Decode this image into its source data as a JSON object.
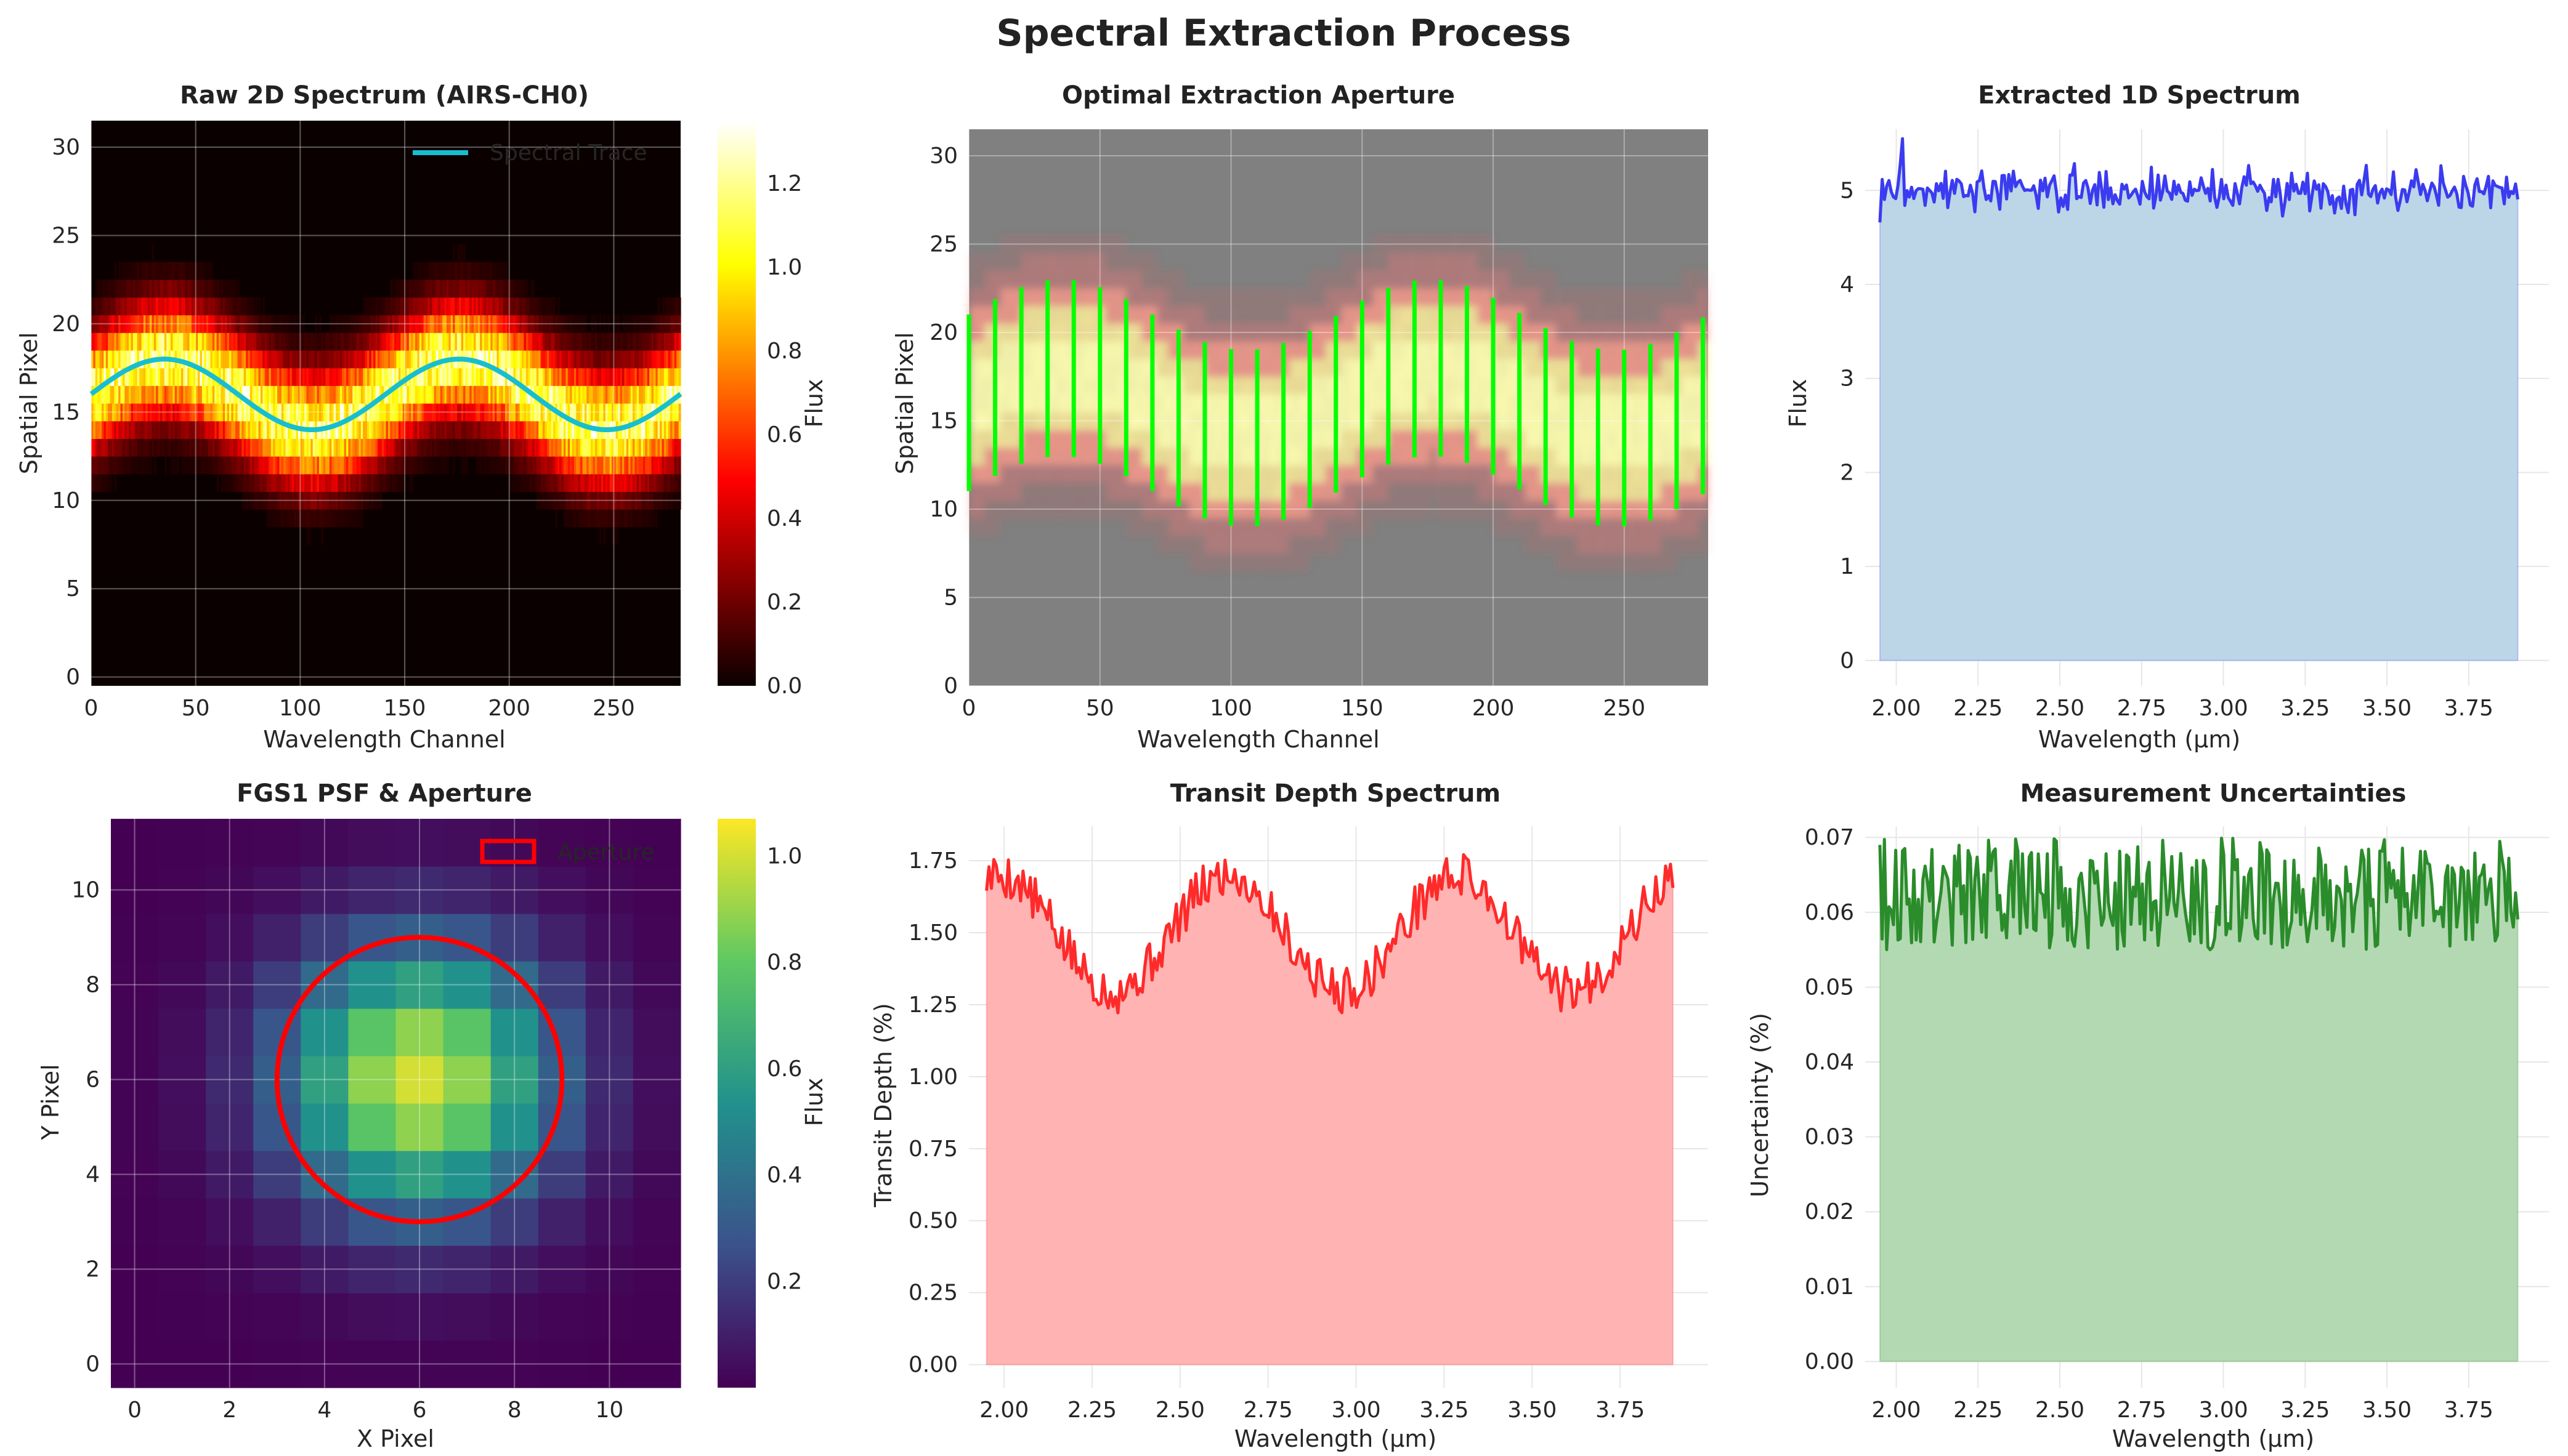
{
  "figure": {
    "title": "Spectral Extraction Process"
  },
  "colors": {
    "trace": "#17becf",
    "aperture_rect": "#00ff00",
    "extracted": "#3b3bf0",
    "extracted_fill": "#bcd6e8",
    "transit": "#ff2a2a",
    "transit_fill": "#ffb3b3",
    "uncert": "#2a8c2a",
    "uncert_fill": "#b3d9b3",
    "circle": "#ff0000",
    "masked_gray": "#808080"
  },
  "chart_data": [
    {
      "id": "raw2d",
      "type": "heatmap",
      "title": "Raw 2D Spectrum (AIRS-CH0)",
      "xlabel": "Wavelength Channel",
      "ylabel": "Spatial Pixel",
      "xlim": [
        0,
        282
      ],
      "ylim": [
        -0.5,
        31.5
      ],
      "xticks": [
        0,
        50,
        100,
        150,
        200,
        250
      ],
      "yticks": [
        0,
        5,
        10,
        15,
        20,
        25,
        30
      ],
      "colormap": "hot",
      "colorbar": {
        "label": "Flux",
        "ticks": [
          0.0,
          0.2,
          0.4,
          0.6,
          0.8,
          1.0,
          1.2
        ],
        "range": [
          0,
          1.35
        ]
      },
      "legend": [
        {
          "name": "Spectral Trace",
          "position": "top-right"
        }
      ],
      "trace": {
        "center": 16,
        "amplitude": 2,
        "period_channels": 141,
        "peak_channel": 35
      }
    },
    {
      "id": "aperture",
      "type": "heatmap",
      "title": "Optimal Extraction Aperture",
      "xlabel": "Wavelength Channel",
      "ylabel": "Spatial Pixel",
      "xlim": [
        0,
        282
      ],
      "ylim": [
        0,
        31.5
      ],
      "xticks": [
        0,
        50,
        100,
        150,
        200,
        250
      ],
      "yticks": [
        0,
        5,
        10,
        15,
        20,
        25,
        30
      ],
      "aperture_half_width": 5,
      "aperture_step_channels": 10
    },
    {
      "id": "extracted1d",
      "type": "area",
      "title": "Extracted 1D Spectrum",
      "xlabel": "Wavelength (µm)",
      "ylabel": "Flux",
      "xlim": [
        1.905,
        3.995
      ],
      "ylim": [
        -0.27,
        5.65
      ],
      "xticks": [
        2.0,
        2.25,
        2.5,
        2.75,
        3.0,
        3.25,
        3.5,
        3.75
      ],
      "xtick_labels": [
        "2.00",
        "2.25",
        "2.50",
        "2.75",
        "3.00",
        "3.25",
        "3.50",
        "3.75"
      ],
      "yticks": [
        0,
        1,
        2,
        3,
        4,
        5
      ],
      "x_range": [
        1.95,
        3.9
      ],
      "base_value": 5.0,
      "noise_range": [
        4.6,
        5.6
      ]
    },
    {
      "id": "psf",
      "type": "heatmap",
      "title": "FGS1 PSF & Aperture",
      "xlabel": "X Pixel",
      "ylabel": "Y Pixel",
      "xlim": [
        -0.5,
        11.5
      ],
      "ylim": [
        -0.5,
        11.5
      ],
      "xticks": [
        0,
        2,
        4,
        6,
        8,
        10
      ],
      "yticks": [
        0,
        2,
        4,
        6,
        8,
        10
      ],
      "colormap": "viridis",
      "colorbar": {
        "label": "Flux",
        "ticks": [
          0.2,
          0.4,
          0.6,
          0.8,
          1.0
        ],
        "range": [
          0.0,
          1.07
        ]
      },
      "legend": [
        {
          "name": "Aperture",
          "position": "top-right"
        }
      ],
      "psf_center": [
        6,
        6
      ],
      "aperture_center": [
        6,
        6
      ],
      "aperture_radius": 3
    },
    {
      "id": "transit",
      "type": "area",
      "title": "Transit Depth Spectrum",
      "xlabel": "Wavelength (µm)",
      "ylabel": "Transit Depth (%)",
      "xlim": [
        1.9,
        4.0
      ],
      "ylim": [
        -0.08,
        1.87
      ],
      "xticks": [
        2.0,
        2.25,
        2.5,
        2.75,
        3.0,
        3.25,
        3.5,
        3.75
      ],
      "xtick_labels": [
        "2.00",
        "2.25",
        "2.50",
        "2.75",
        "3.00",
        "3.25",
        "3.50",
        "3.75"
      ],
      "yticks": [
        0.0,
        0.25,
        0.5,
        0.75,
        1.0,
        1.25,
        1.5,
        1.75
      ],
      "ytick_labels": [
        "0.00",
        "0.25",
        "0.50",
        "0.75",
        "1.00",
        "1.25",
        "1.50",
        "1.75"
      ],
      "x_range": [
        1.95,
        3.9
      ],
      "mean": 1.5,
      "amplitude": 0.2,
      "cycles": 3
    },
    {
      "id": "uncert",
      "type": "area",
      "title": "Measurement Uncertainties",
      "xlabel": "Wavelength (µm)",
      "ylabel": "Uncertainty (%)",
      "xlim": [
        1.905,
        3.995
      ],
      "ylim": [
        -0.0035,
        0.0715
      ],
      "xticks": [
        2.0,
        2.25,
        2.5,
        2.75,
        3.0,
        3.25,
        3.5,
        3.75
      ],
      "xtick_labels": [
        "2.00",
        "2.25",
        "2.50",
        "2.75",
        "3.00",
        "3.25",
        "3.50",
        "3.75"
      ],
      "yticks": [
        0.0,
        0.01,
        0.02,
        0.03,
        0.04,
        0.05,
        0.06,
        0.07
      ],
      "ytick_labels": [
        "0.00",
        "0.01",
        "0.02",
        "0.03",
        "0.04",
        "0.05",
        "0.06",
        "0.07"
      ],
      "x_range": [
        1.95,
        3.9
      ],
      "value_range": [
        0.05,
        0.07
      ]
    }
  ]
}
